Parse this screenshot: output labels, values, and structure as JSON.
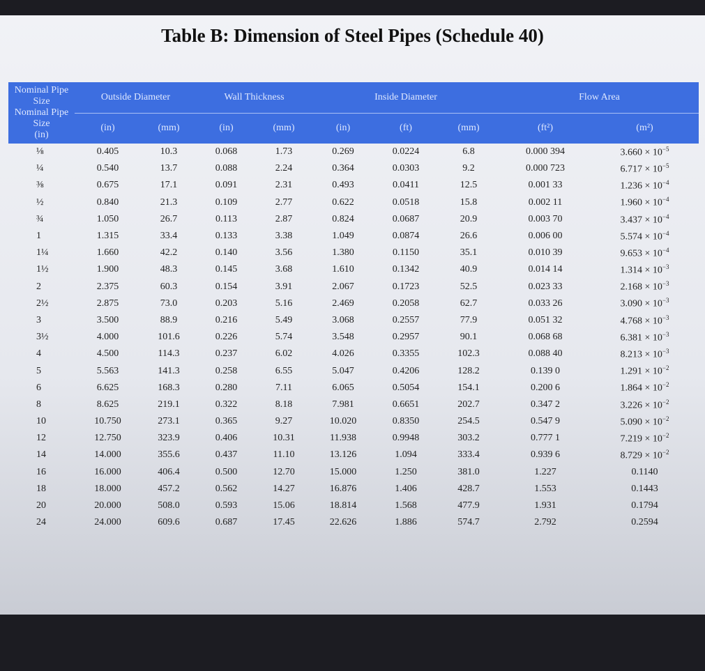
{
  "title": "Table B: Dimension of Steel Pipes (Schedule 40)",
  "header": {
    "groups": [
      "Nominal Pipe Size",
      "Outside Diameter",
      "Wall Thickness",
      "Inside Diameter",
      "Flow Area"
    ],
    "units": [
      "(in)",
      "(in)",
      "(mm)",
      "(in)",
      "(mm)",
      "(in)",
      "(ft)",
      "(mm)",
      "(ft²)",
      "(m²)"
    ]
  },
  "table": {
    "rows": [
      [
        "⅛",
        "0.405",
        "10.3",
        "0.068",
        "1.73",
        "0.269",
        "0.0224",
        "6.8",
        "0.000 394",
        {
          "base": "3.660 × 10",
          "exp": "−5"
        }
      ],
      [
        "¼",
        "0.540",
        "13.7",
        "0.088",
        "2.24",
        "0.364",
        "0.0303",
        "9.2",
        "0.000 723",
        {
          "base": "6.717 × 10",
          "exp": "−5"
        }
      ],
      [
        "⅜",
        "0.675",
        "17.1",
        "0.091",
        "2.31",
        "0.493",
        "0.0411",
        "12.5",
        "0.001 33",
        {
          "base": "1.236 × 10",
          "exp": "−4"
        }
      ],
      [
        "½",
        "0.840",
        "21.3",
        "0.109",
        "2.77",
        "0.622",
        "0.0518",
        "15.8",
        "0.002 11",
        {
          "base": "1.960 × 10",
          "exp": "−4"
        }
      ],
      [
        "¾",
        "1.050",
        "26.7",
        "0.113",
        "2.87",
        "0.824",
        "0.0687",
        "20.9",
        "0.003 70",
        {
          "base": "3.437 × 10",
          "exp": "−4"
        }
      ],
      [
        "1",
        "1.315",
        "33.4",
        "0.133",
        "3.38",
        "1.049",
        "0.0874",
        "26.6",
        "0.006 00",
        {
          "base": "5.574 × 10",
          "exp": "−4"
        }
      ],
      [
        "1¼",
        "1.660",
        "42.2",
        "0.140",
        "3.56",
        "1.380",
        "0.1150",
        "35.1",
        "0.010 39",
        {
          "base": "9.653 × 10",
          "exp": "−4"
        }
      ],
      [
        "1½",
        "1.900",
        "48.3",
        "0.145",
        "3.68",
        "1.610",
        "0.1342",
        "40.9",
        "0.014 14",
        {
          "base": "1.314 × 10",
          "exp": "−3"
        }
      ],
      [
        "2",
        "2.375",
        "60.3",
        "0.154",
        "3.91",
        "2.067",
        "0.1723",
        "52.5",
        "0.023 33",
        {
          "base": "2.168 × 10",
          "exp": "−3"
        }
      ],
      [
        "2½",
        "2.875",
        "73.0",
        "0.203",
        "5.16",
        "2.469",
        "0.2058",
        "62.7",
        "0.033 26",
        {
          "base": "3.090 × 10",
          "exp": "−3"
        }
      ],
      [
        "3",
        "3.500",
        "88.9",
        "0.216",
        "5.49",
        "3.068",
        "0.2557",
        "77.9",
        "0.051 32",
        {
          "base": "4.768 × 10",
          "exp": "−3"
        }
      ],
      [
        "3½",
        "4.000",
        "101.6",
        "0.226",
        "5.74",
        "3.548",
        "0.2957",
        "90.1",
        "0.068 68",
        {
          "base": "6.381 × 10",
          "exp": "−3"
        }
      ],
      [
        "4",
        "4.500",
        "114.3",
        "0.237",
        "6.02",
        "4.026",
        "0.3355",
        "102.3",
        "0.088 40",
        {
          "base": "8.213 × 10",
          "exp": "−3"
        }
      ],
      [
        "5",
        "5.563",
        "141.3",
        "0.258",
        "6.55",
        "5.047",
        "0.4206",
        "128.2",
        "0.139 0",
        {
          "base": "1.291 × 10",
          "exp": "−2"
        }
      ],
      [
        "6",
        "6.625",
        "168.3",
        "0.280",
        "7.11",
        "6.065",
        "0.5054",
        "154.1",
        "0.200 6",
        {
          "base": "1.864 × 10",
          "exp": "−2"
        }
      ],
      [
        "8",
        "8.625",
        "219.1",
        "0.322",
        "8.18",
        "7.981",
        "0.6651",
        "202.7",
        "0.347 2",
        {
          "base": "3.226 × 10",
          "exp": "−2"
        }
      ],
      [
        "10",
        "10.750",
        "273.1",
        "0.365",
        "9.27",
        "10.020",
        "0.8350",
        "254.5",
        "0.547 9",
        {
          "base": "5.090 × 10",
          "exp": "−2"
        }
      ],
      [
        "12",
        "12.750",
        "323.9",
        "0.406",
        "10.31",
        "11.938",
        "0.9948",
        "303.2",
        "0.777 1",
        {
          "base": "7.219 × 10",
          "exp": "−2"
        }
      ],
      [
        "14",
        "14.000",
        "355.6",
        "0.437",
        "11.10",
        "13.126",
        "1.094",
        "333.4",
        "0.939 6",
        {
          "base": "8.729 × 10",
          "exp": "−2"
        }
      ],
      [
        "16",
        "16.000",
        "406.4",
        "0.500",
        "12.70",
        "15.000",
        "1.250",
        "381.0",
        "1.227",
        "0.1140"
      ],
      [
        "18",
        "18.000",
        "457.2",
        "0.562",
        "14.27",
        "16.876",
        "1.406",
        "428.7",
        "1.553",
        "0.1443"
      ],
      [
        "20",
        "20.000",
        "508.0",
        "0.593",
        "15.06",
        "18.814",
        "1.568",
        "477.9",
        "1.931",
        "0.1794"
      ],
      [
        "24",
        "24.000",
        "609.6",
        "0.687",
        "17.45",
        "22.626",
        "1.886",
        "574.7",
        "2.792",
        "0.2594"
      ]
    ]
  }
}
